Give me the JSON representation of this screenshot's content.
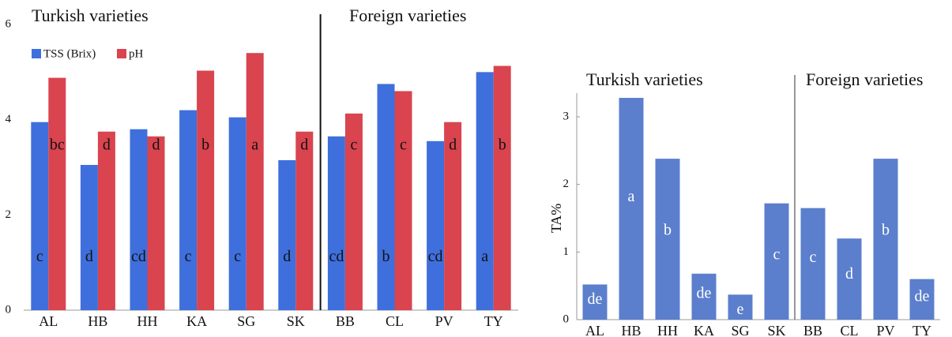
{
  "chart_data": [
    {
      "type": "bar",
      "annotations": [
        "Turkish varieties",
        "Foreign varieties"
      ],
      "categories": [
        "AL",
        "HB",
        "HH",
        "KA",
        "SG",
        "SK",
        "BB",
        "CL",
        "PV",
        "TY"
      ],
      "series": [
        {
          "name": "TSS (Brix)",
          "color": "#3f6fdc",
          "values": [
            3.95,
            3.05,
            3.8,
            4.2,
            4.05,
            3.15,
            3.65,
            4.75,
            3.55,
            5.0
          ],
          "letters": [
            "c",
            "d",
            "cd",
            "c",
            "c",
            "d",
            "cd",
            "b",
            "cd",
            "a"
          ]
        },
        {
          "name": "pH",
          "color": "#d9444f",
          "values": [
            4.88,
            3.75,
            3.65,
            5.03,
            5.4,
            3.75,
            4.13,
            4.6,
            3.95,
            5.13
          ],
          "letters": [
            "bc",
            "d",
            "d",
            "b",
            "a",
            "d",
            "c",
            "c",
            "d",
            "b"
          ]
        }
      ],
      "ylim": [
        0,
        6
      ],
      "yticks": [
        0,
        2,
        4,
        6
      ],
      "legend": "top-left"
    },
    {
      "type": "bar",
      "annotations": [
        "Turkish varieties",
        "Foreign varieties"
      ],
      "ylabel": "TA%",
      "categories": [
        "AL",
        "HB",
        "HH",
        "KA",
        "SG",
        "SK",
        "BB",
        "CL",
        "PV",
        "TY"
      ],
      "series": [
        {
          "color": "#5b7fcc",
          "values": [
            0.52,
            3.28,
            2.38,
            0.68,
            0.37,
            1.72,
            1.65,
            1.2,
            2.38,
            0.6
          ],
          "letters": [
            "de",
            "a",
            "b",
            "de",
            "e",
            "c",
            "c",
            "d",
            "b",
            "de"
          ]
        }
      ],
      "ylim": [
        0,
        3
      ],
      "yticks": [
        0,
        1,
        2,
        3
      ]
    }
  ]
}
